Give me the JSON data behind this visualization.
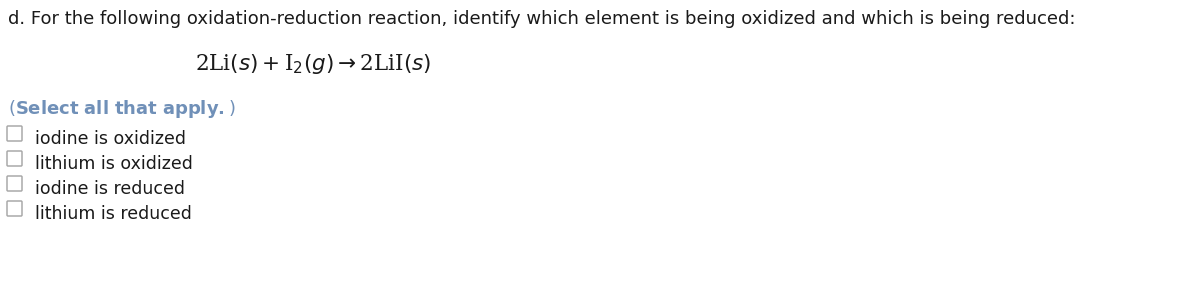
{
  "title_text": "d. For the following oxidation-reduction reaction, identify which element is being oxidized and which is being reduced:",
  "options": [
    "iodine is oxidized",
    "lithium is oxidized",
    "iodine is reduced",
    "lithium is reduced"
  ],
  "bg_color": "#ffffff",
  "title_color": "#1a1a1a",
  "select_color": "#7090b8",
  "option_color": "#1a1a1a",
  "checkbox_edge_color": "#aaaaaa",
  "title_fontsize": 13.0,
  "equation_fontsize": 15.5,
  "select_fontsize": 13.0,
  "option_fontsize": 12.5,
  "checkbox_size": 10.5
}
